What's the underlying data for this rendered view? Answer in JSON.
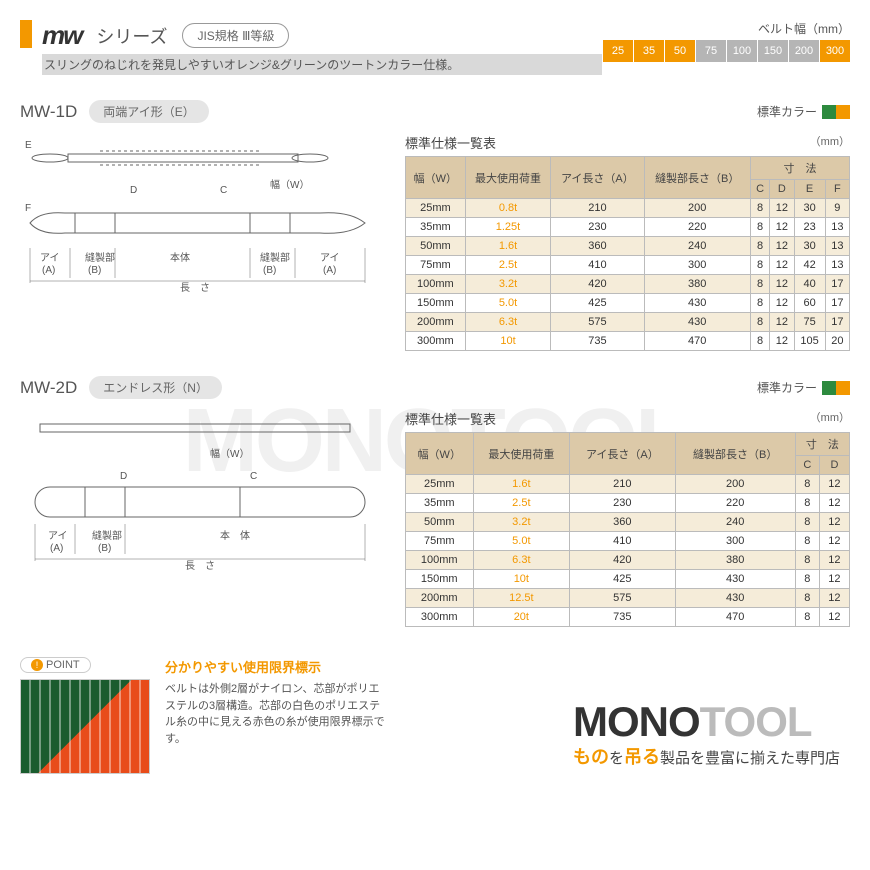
{
  "header": {
    "series_logo": "mw",
    "series_text": "シリーズ",
    "jis": "JIS規格 Ⅲ等級",
    "subtitle": "スリングのねじれを発見しやすいオレンジ&グリーンのツートンカラー仕様。",
    "belt_label": "ベルト幅（mm）",
    "belt_widths": [
      {
        "v": "25",
        "c": "orange"
      },
      {
        "v": "35",
        "c": "orange"
      },
      {
        "v": "50",
        "c": "orange"
      },
      {
        "v": "75",
        "c": "gray"
      },
      {
        "v": "100",
        "c": "gray"
      },
      {
        "v": "150",
        "c": "gray"
      },
      {
        "v": "200",
        "c": "gray"
      },
      {
        "v": "300",
        "c": "orange"
      }
    ]
  },
  "table_title": "標準仕様一覧表",
  "unit": "（mm）",
  "color_label": "標準カラー",
  "sec1": {
    "code": "MW-1D",
    "badge": "両端アイ形（E）",
    "headers": {
      "w": "幅（W）",
      "load": "最大使用荷重",
      "a": "アイ長さ（A）",
      "b": "縫製部長さ（B）",
      "dim": "寸　法",
      "c": "C",
      "d": "D",
      "e": "E",
      "f": "F"
    },
    "rows": [
      [
        "25mm",
        "0.8t",
        "210",
        "200",
        "8",
        "12",
        "30",
        "9"
      ],
      [
        "35mm",
        "1.25t",
        "230",
        "220",
        "8",
        "12",
        "23",
        "13"
      ],
      [
        "50mm",
        "1.6t",
        "360",
        "240",
        "8",
        "12",
        "30",
        "13"
      ],
      [
        "75mm",
        "2.5t",
        "410",
        "300",
        "8",
        "12",
        "42",
        "13"
      ],
      [
        "100mm",
        "3.2t",
        "420",
        "380",
        "8",
        "12",
        "40",
        "17"
      ],
      [
        "150mm",
        "5.0t",
        "425",
        "430",
        "8",
        "12",
        "60",
        "17"
      ],
      [
        "200mm",
        "6.3t",
        "575",
        "430",
        "8",
        "12",
        "75",
        "17"
      ],
      [
        "300mm",
        "10t",
        "735",
        "470",
        "8",
        "12",
        "105",
        "20"
      ]
    ],
    "diag": {
      "e": "E",
      "f": "F",
      "d": "D",
      "c": "C",
      "w": "幅（W）",
      "ai": "アイ",
      "seam": "縫製部",
      "body": "本体",
      "a": "(A)",
      "b": "(B)",
      "len": "長　さ"
    }
  },
  "sec2": {
    "code": "MW-2D",
    "badge": "エンドレス形（N）",
    "headers": {
      "w": "幅（W）",
      "load": "最大使用荷重",
      "a": "アイ長さ（A）",
      "b": "縫製部長さ（B）",
      "dim": "寸　法",
      "c": "C",
      "d": "D"
    },
    "rows": [
      [
        "25mm",
        "1.6t",
        "210",
        "200",
        "8",
        "12"
      ],
      [
        "35mm",
        "2.5t",
        "230",
        "220",
        "8",
        "12"
      ],
      [
        "50mm",
        "3.2t",
        "360",
        "240",
        "8",
        "12"
      ],
      [
        "75mm",
        "5.0t",
        "410",
        "300",
        "8",
        "12"
      ],
      [
        "100mm",
        "6.3t",
        "420",
        "380",
        "8",
        "12"
      ],
      [
        "150mm",
        "10t",
        "425",
        "430",
        "8",
        "12"
      ],
      [
        "200mm",
        "12.5t",
        "575",
        "430",
        "8",
        "12"
      ],
      [
        "300mm",
        "20t",
        "735",
        "470",
        "8",
        "12"
      ]
    ],
    "diag": {
      "w": "幅（W）",
      "d": "D",
      "c": "C",
      "ai": "アイ",
      "seam": "縫製部",
      "body": "本　体",
      "a": "(A)",
      "b": "(B)",
      "len": "長　さ"
    }
  },
  "point": {
    "badge": "POINT",
    "title": "分かりやすい使用限界標示",
    "desc": "ベルトは外側2層がナイロン、芯部がポリエステルの3層構造。芯部の白色のポリエステル糸の中に見える赤色の糸が使用限界標示です。"
  },
  "footer": {
    "mono1": "MONO",
    "mono2": "TOOL",
    "tag1": "もの",
    "tag2": "を",
    "tag3": "吊る",
    "tag4": "製品を豊富に揃えた専門店"
  },
  "watermark": "MONOTOOL"
}
